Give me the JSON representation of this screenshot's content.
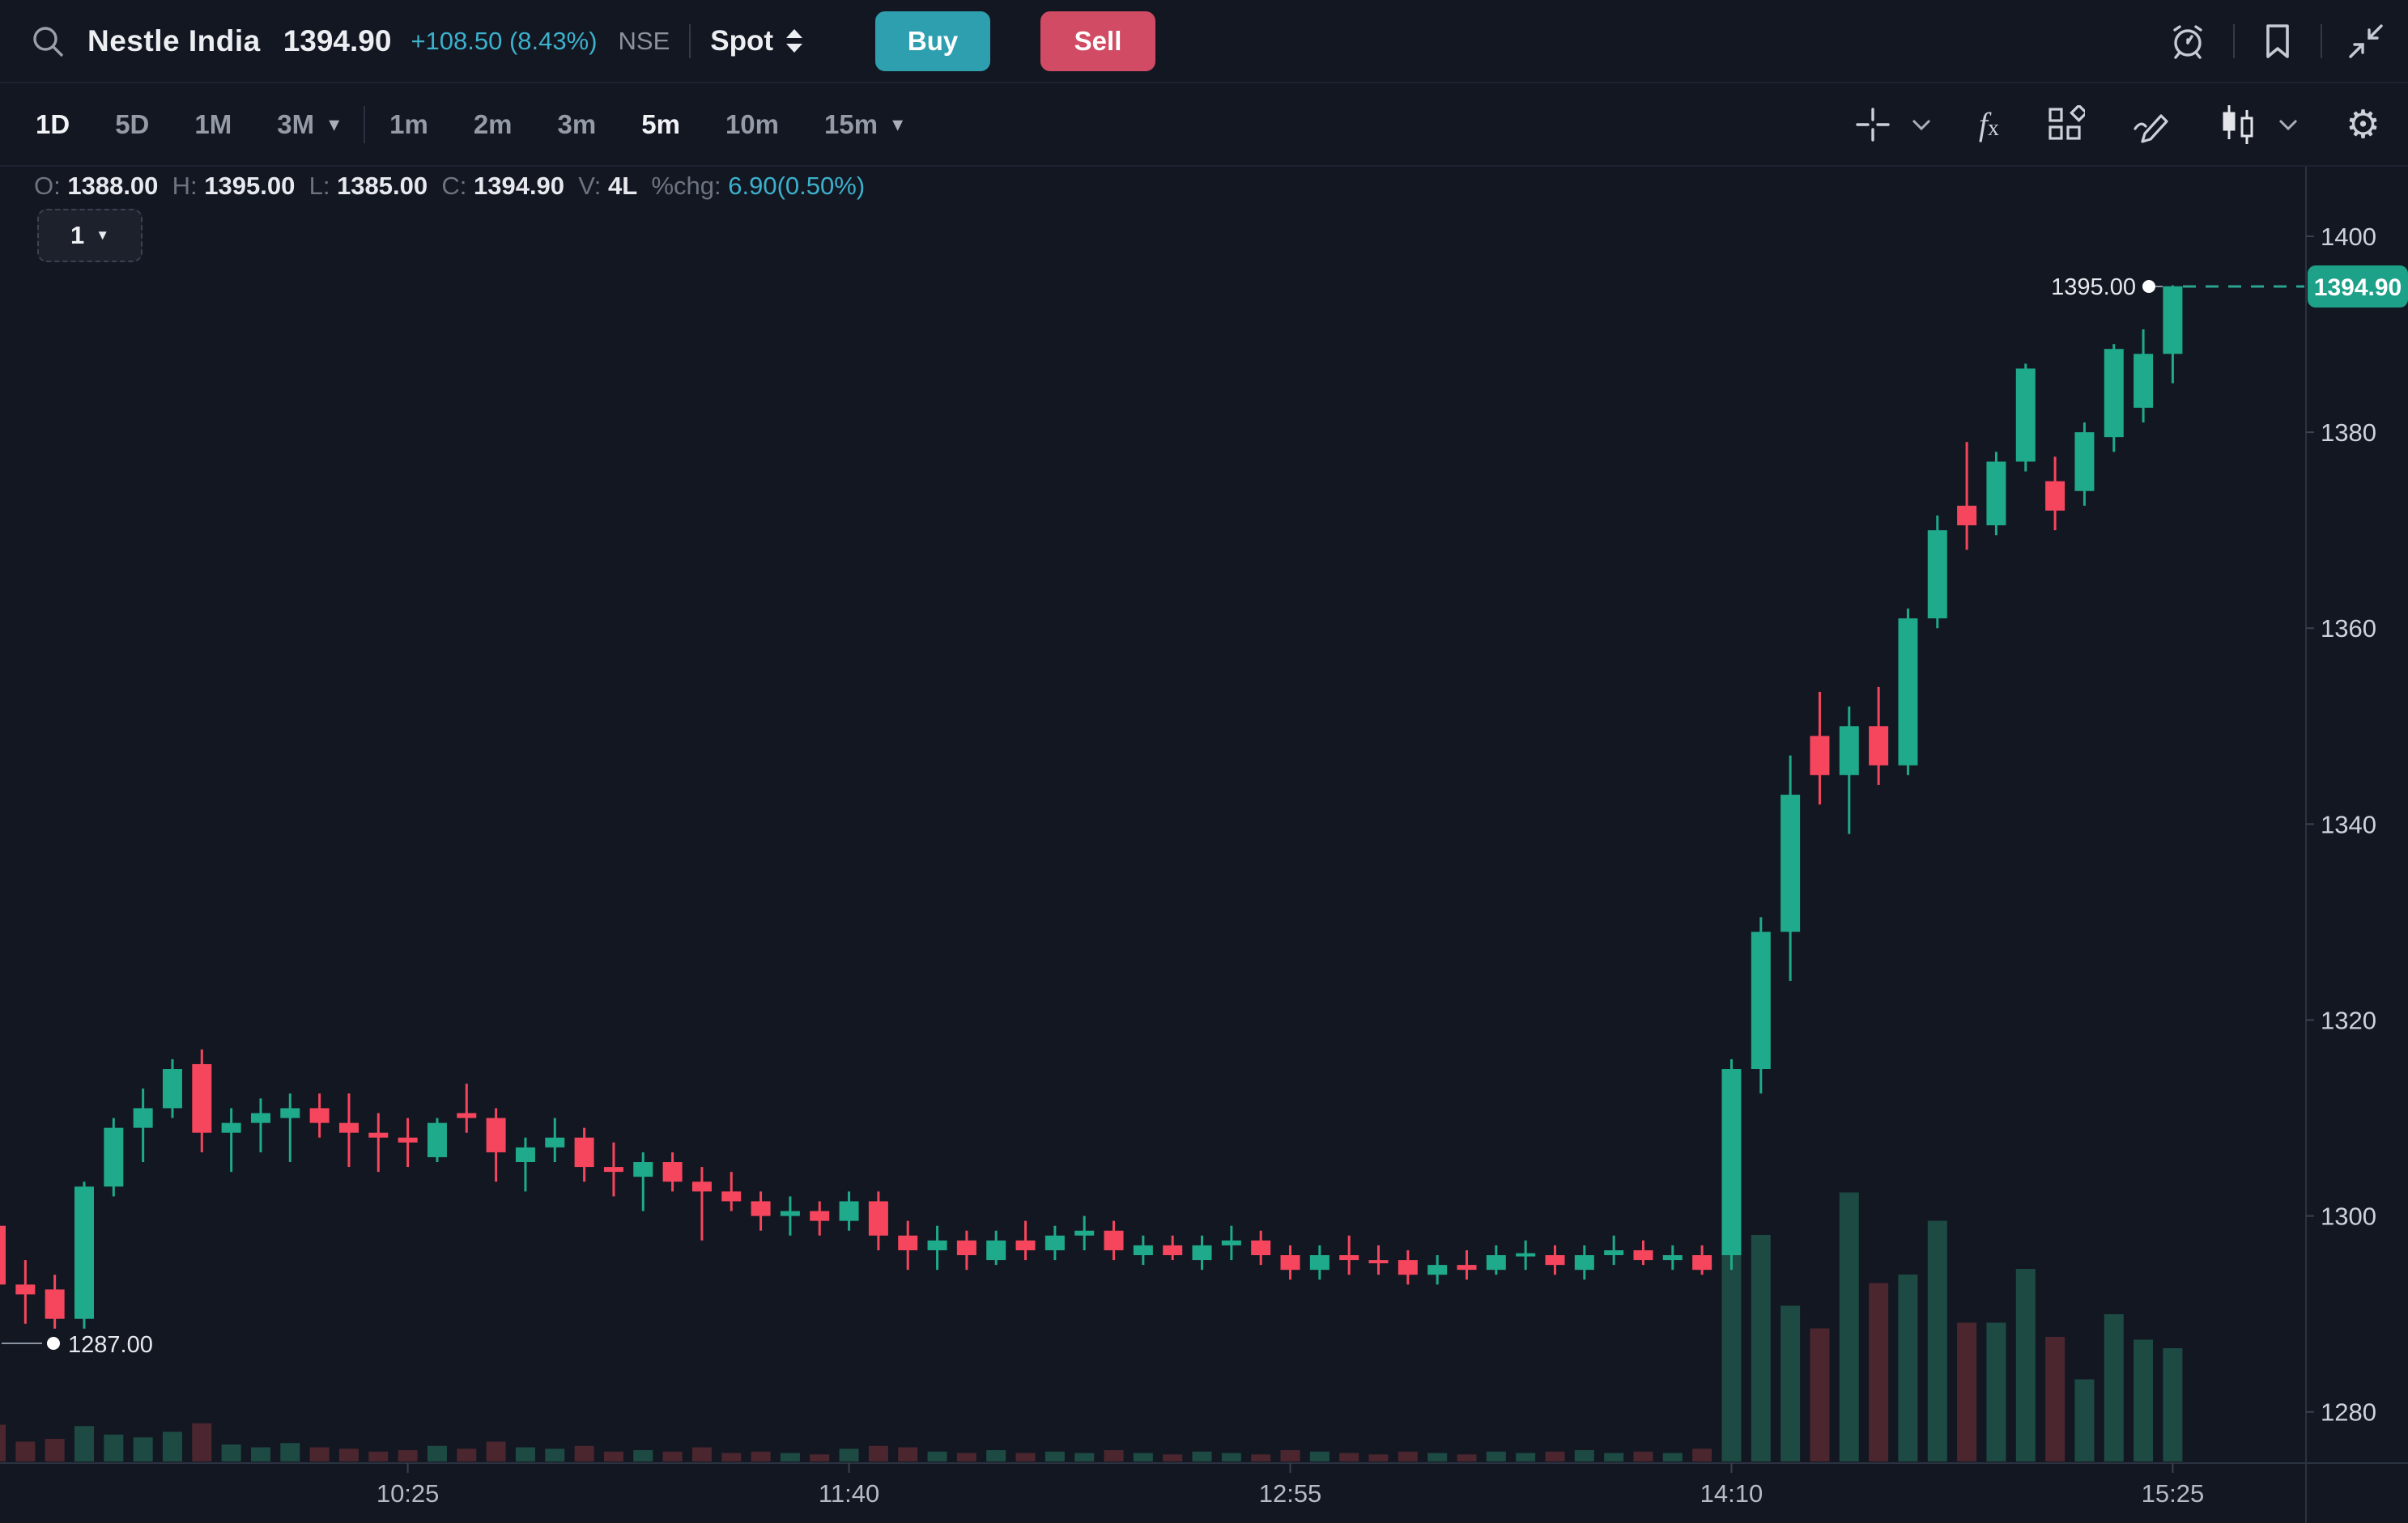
{
  "colors": {
    "background": "#131722",
    "accent_cyan": "#3cb0cc",
    "candle_green": "#1faa8b",
    "candle_red": "#f6465d",
    "volume_green": "#1d4b43",
    "volume_red": "#4b262e",
    "price_tag_bg": "#1da189",
    "buy_button": "#2e9fae",
    "sell_button": "#d14b64"
  },
  "header": {
    "symbol": "Nestle India",
    "price": "1394.90",
    "change": "+108.50 (8.43%)",
    "exchange": "NSE",
    "segment": "Spot",
    "buy_label": "Buy",
    "sell_label": "Sell"
  },
  "toolbar": {
    "ranges": [
      {
        "label": "1D",
        "active": true
      },
      {
        "label": "5D",
        "active": false
      },
      {
        "label": "1M",
        "active": false
      },
      {
        "label": "3M",
        "active": false
      }
    ],
    "intervals": [
      {
        "label": "1m",
        "active": false
      },
      {
        "label": "2m",
        "active": false
      },
      {
        "label": "3m",
        "active": false
      },
      {
        "label": "5m",
        "active": true
      },
      {
        "label": "10m",
        "active": false
      },
      {
        "label": "15m",
        "active": false
      }
    ]
  },
  "ohlc": {
    "o_label": "O:",
    "o": "1388.00",
    "h_label": "H:",
    "h": "1395.00",
    "l_label": "L:",
    "l": "1385.00",
    "c_label": "C:",
    "c": "1394.90",
    "v_label": "V:",
    "v": "4L",
    "chg_label": "%chg:",
    "chg": "6.90(0.50%)"
  },
  "count_button": {
    "label": "1"
  },
  "annotations": {
    "high_label": "1395.00",
    "low_label": "1287.00",
    "last_price_tag": "1394.90"
  },
  "chart_data": {
    "type": "candlestick",
    "title": "Nestle India intraday",
    "range": "1D",
    "interval": "5m",
    "ylim": [
      1275,
      1403
    ],
    "grid": false,
    "y_axis": {
      "ticks": [
        1400,
        1380,
        1360,
        1340,
        1320,
        1300,
        1280
      ]
    },
    "x_axis": {
      "ticks": [
        {
          "label": "10:25",
          "index": 14
        },
        {
          "label": "11:40",
          "index": 29
        },
        {
          "label": "12:55",
          "index": 44
        },
        {
          "label": "14:10",
          "index": 59
        },
        {
          "label": "15:25",
          "index": 74
        }
      ]
    },
    "volume_unit": "lakh",
    "last_price": 1394.9,
    "day_high": 1395.0,
    "day_low": 1287.0,
    "candles": [
      [
        "09:15",
        1299.0,
        1300.5,
        1287.0,
        1293.0,
        1.3
      ],
      [
        "09:20",
        1293.0,
        1295.5,
        1289.0,
        1292.0,
        0.7
      ],
      [
        "09:25",
        1292.5,
        1294.0,
        1288.5,
        1289.5,
        0.8
      ],
      [
        "09:30",
        1289.5,
        1303.5,
        1288.5,
        1303.0,
        1.25
      ],
      [
        "09:35",
        1303.0,
        1310.0,
        1302.0,
        1309.0,
        0.95
      ],
      [
        "09:40",
        1309.0,
        1313.0,
        1305.5,
        1311.0,
        0.85
      ],
      [
        "09:45",
        1311.0,
        1316.0,
        1310.0,
        1315.0,
        1.05
      ],
      [
        "09:50",
        1315.5,
        1317.0,
        1306.5,
        1308.5,
        1.35
      ],
      [
        "09:55",
        1308.5,
        1311.0,
        1304.5,
        1309.5,
        0.6
      ],
      [
        "10:00",
        1309.5,
        1312.0,
        1306.5,
        1310.5,
        0.5
      ],
      [
        "10:05",
        1310.0,
        1312.5,
        1305.5,
        1311.0,
        0.65
      ],
      [
        "10:10",
        1311.0,
        1312.5,
        1308.0,
        1309.5,
        0.5
      ],
      [
        "10:15",
        1309.5,
        1312.5,
        1305.0,
        1308.5,
        0.45
      ],
      [
        "10:20",
        1308.5,
        1310.5,
        1304.5,
        1308.0,
        0.35
      ],
      [
        "10:25",
        1308.0,
        1310.0,
        1305.0,
        1307.5,
        0.4
      ],
      [
        "10:30",
        1306.0,
        1310.0,
        1305.5,
        1309.5,
        0.55
      ],
      [
        "10:35",
        1310.5,
        1313.5,
        1308.5,
        1310.0,
        0.45
      ],
      [
        "10:40",
        1310.0,
        1311.0,
        1303.5,
        1306.5,
        0.7
      ],
      [
        "10:45",
        1305.5,
        1308.0,
        1302.5,
        1307.0,
        0.5
      ],
      [
        "10:50",
        1307.0,
        1310.0,
        1305.5,
        1308.0,
        0.45
      ],
      [
        "10:55",
        1308.0,
        1309.0,
        1303.5,
        1305.0,
        0.55
      ],
      [
        "11:00",
        1305.0,
        1307.5,
        1302.0,
        1304.5,
        0.35
      ],
      [
        "11:05",
        1304.0,
        1306.5,
        1300.5,
        1305.5,
        0.4
      ],
      [
        "11:10",
        1305.5,
        1306.5,
        1302.5,
        1303.5,
        0.35
      ],
      [
        "11:15",
        1303.5,
        1305.0,
        1297.5,
        1302.5,
        0.5
      ],
      [
        "11:20",
        1302.5,
        1304.5,
        1300.5,
        1301.5,
        0.3
      ],
      [
        "11:25",
        1301.5,
        1302.5,
        1298.5,
        1300.0,
        0.35
      ],
      [
        "11:30",
        1300.0,
        1302.0,
        1298.0,
        1300.5,
        0.3
      ],
      [
        "11:35",
        1300.5,
        1301.5,
        1298.0,
        1299.5,
        0.25
      ],
      [
        "11:40",
        1299.5,
        1302.5,
        1298.5,
        1301.5,
        0.45
      ],
      [
        "11:45",
        1301.5,
        1302.5,
        1296.5,
        1298.0,
        0.55
      ],
      [
        "11:50",
        1298.0,
        1299.5,
        1294.5,
        1296.5,
        0.5
      ],
      [
        "11:55",
        1296.5,
        1299.0,
        1294.5,
        1297.5,
        0.35
      ],
      [
        "12:00",
        1297.5,
        1298.5,
        1294.5,
        1296.0,
        0.3
      ],
      [
        "12:05",
        1295.5,
        1298.5,
        1295.0,
        1297.5,
        0.4
      ],
      [
        "12:10",
        1297.5,
        1299.5,
        1295.5,
        1296.5,
        0.3
      ],
      [
        "12:15",
        1296.5,
        1299.0,
        1295.5,
        1298.0,
        0.35
      ],
      [
        "12:20",
        1298.0,
        1300.0,
        1296.5,
        1298.5,
        0.3
      ],
      [
        "12:25",
        1298.5,
        1299.5,
        1295.5,
        1296.5,
        0.4
      ],
      [
        "12:30",
        1296.0,
        1298.0,
        1295.0,
        1297.0,
        0.3
      ],
      [
        "12:35",
        1297.0,
        1298.0,
        1295.5,
        1296.0,
        0.25
      ],
      [
        "12:40",
        1295.5,
        1298.0,
        1294.5,
        1297.0,
        0.35
      ],
      [
        "12:45",
        1297.0,
        1299.0,
        1295.5,
        1297.5,
        0.3
      ],
      [
        "12:50",
        1297.5,
        1298.5,
        1295.0,
        1296.0,
        0.25
      ],
      [
        "12:55",
        1296.0,
        1297.0,
        1293.5,
        1294.5,
        0.4
      ],
      [
        "13:00",
        1294.5,
        1297.0,
        1293.5,
        1296.0,
        0.35
      ],
      [
        "13:05",
        1296.0,
        1298.0,
        1294.0,
        1295.5,
        0.3
      ],
      [
        "13:10",
        1295.5,
        1297.0,
        1294.0,
        1295.4,
        0.25
      ],
      [
        "13:15",
        1295.5,
        1296.5,
        1293.0,
        1294.0,
        0.35
      ],
      [
        "13:20",
        1294.0,
        1296.0,
        1293.0,
        1295.0,
        0.3
      ],
      [
        "13:25",
        1295.0,
        1296.5,
        1293.5,
        1294.5,
        0.25
      ],
      [
        "13:30",
        1294.5,
        1297.0,
        1294.0,
        1296.0,
        0.35
      ],
      [
        "13:35",
        1296.0,
        1297.5,
        1294.5,
        1296.2,
        0.3
      ],
      [
        "13:40",
        1296.0,
        1297.0,
        1294.0,
        1295.0,
        0.35
      ],
      [
        "13:45",
        1294.5,
        1297.0,
        1293.5,
        1296.0,
        0.4
      ],
      [
        "13:50",
        1296.0,
        1298.0,
        1295.0,
        1296.5,
        0.3
      ],
      [
        "13:55",
        1296.5,
        1297.5,
        1295.0,
        1295.5,
        0.35
      ],
      [
        "14:00",
        1295.5,
        1297.0,
        1294.5,
        1296.0,
        0.3
      ],
      [
        "14:05",
        1296.0,
        1297.0,
        1294.0,
        1294.5,
        0.45
      ],
      [
        "14:10",
        1296.0,
        1316.0,
        1294.5,
        1315.0,
        12.0
      ],
      [
        "14:15",
        1315.0,
        1330.5,
        1312.5,
        1329.0,
        8.0
      ],
      [
        "14:20",
        1329.0,
        1347.0,
        1324.0,
        1343.0,
        5.5
      ],
      [
        "14:25",
        1349.0,
        1353.5,
        1342.0,
        1345.0,
        4.7
      ],
      [
        "14:30",
        1345.0,
        1352.0,
        1339.0,
        1350.0,
        9.5
      ],
      [
        "14:35",
        1350.0,
        1354.0,
        1344.0,
        1346.0,
        6.3
      ],
      [
        "14:40",
        1346.0,
        1362.0,
        1345.0,
        1361.0,
        6.6
      ],
      [
        "14:45",
        1361.0,
        1371.5,
        1360.0,
        1370.0,
        8.5
      ],
      [
        "14:50",
        1372.5,
        1379.0,
        1368.0,
        1370.5,
        4.9
      ],
      [
        "14:55",
        1370.5,
        1378.0,
        1369.5,
        1377.0,
        4.9
      ],
      [
        "15:00",
        1377.0,
        1387.0,
        1376.0,
        1386.5,
        6.8
      ],
      [
        "15:05",
        1375.0,
        1377.5,
        1370.0,
        1372.0,
        4.4
      ],
      [
        "15:10",
        1374.0,
        1381.0,
        1372.5,
        1380.0,
        2.9
      ],
      [
        "15:15",
        1379.5,
        1389.0,
        1378.0,
        1388.5,
        5.2
      ],
      [
        "15:20",
        1382.5,
        1390.5,
        1381.0,
        1388.0,
        4.3
      ],
      [
        "15:25",
        1388.0,
        1395.0,
        1385.0,
        1394.9,
        4.0
      ]
    ]
  }
}
